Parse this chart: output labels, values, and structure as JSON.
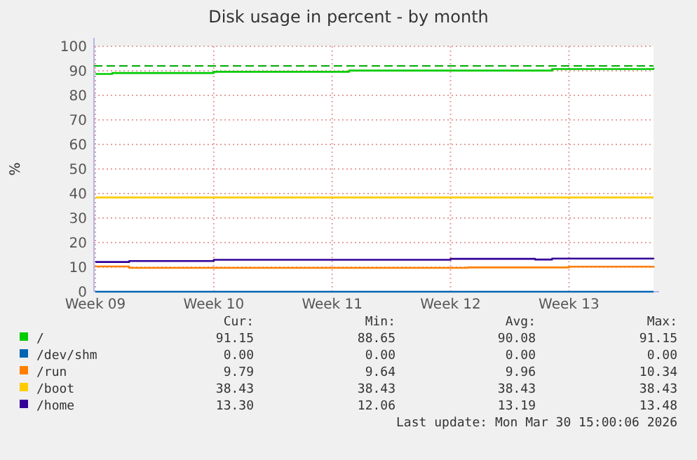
{
  "chart_data": {
    "type": "step",
    "title": "Disk usage in percent - by month",
    "ylabel": "%",
    "categories": [
      "Week 09",
      null,
      null,
      null,
      null,
      null,
      null,
      "Week 10",
      null,
      null,
      null,
      null,
      null,
      null,
      "Week 11",
      null,
      null,
      null,
      null,
      null,
      null,
      "Week 12",
      null,
      null,
      null,
      null,
      null,
      null,
      "Week 13",
      null,
      null,
      null,
      null,
      null
    ],
    "ylim": [
      0,
      100
    ],
    "yticks": [
      0,
      10,
      20,
      30,
      40,
      50,
      60,
      70,
      80,
      90,
      100
    ],
    "grid": true,
    "legend": "bottom",
    "line_style": "solid",
    "series": [
      {
        "name": "/",
        "color": "#00cc00",
        "values": [
          88.7,
          89.1,
          89.1,
          89.1,
          89.1,
          89.1,
          89.1,
          89.6,
          89.6,
          89.6,
          89.6,
          89.6,
          89.6,
          89.6,
          89.6,
          90.1,
          90.1,
          90.1,
          90.1,
          90.1,
          90.1,
          90.1,
          90.1,
          90.1,
          90.1,
          90.1,
          90.1,
          90.7,
          90.7,
          90.7,
          90.7,
          90.7,
          90.7,
          91.2
        ]
      },
      {
        "name": "/dev/shm",
        "color": "#0066b3",
        "values": [
          0,
          0,
          0,
          0,
          0,
          0,
          0,
          0,
          0,
          0,
          0,
          0,
          0,
          0,
          0,
          0,
          0,
          0,
          0,
          0,
          0,
          0,
          0,
          0,
          0,
          0,
          0,
          0,
          0,
          0,
          0,
          0,
          0,
          0
        ]
      },
      {
        "name": "/run",
        "color": "#ff8000",
        "values": [
          10.3,
          10.3,
          9.7,
          9.7,
          9.7,
          9.7,
          9.7,
          9.7,
          9.7,
          9.7,
          9.7,
          9.7,
          9.7,
          9.7,
          9.7,
          9.7,
          9.7,
          9.7,
          9.7,
          9.7,
          9.7,
          9.7,
          9.9,
          9.9,
          9.9,
          9.9,
          9.9,
          9.9,
          10.2,
          10.2,
          10.2,
          10.2,
          10.2,
          9.8
        ]
      },
      {
        "name": "/boot",
        "color": "#ffcc00",
        "values": [
          38.4,
          38.4,
          38.4,
          38.4,
          38.4,
          38.4,
          38.4,
          38.4,
          38.4,
          38.4,
          38.4,
          38.4,
          38.4,
          38.4,
          38.4,
          38.4,
          38.4,
          38.4,
          38.4,
          38.4,
          38.4,
          38.4,
          38.4,
          38.4,
          38.4,
          38.4,
          38.4,
          38.4,
          38.4,
          38.4,
          38.4,
          38.4,
          38.4,
          38.4
        ]
      },
      {
        "name": "/home",
        "color": "#330099",
        "values": [
          12.1,
          12.1,
          12.5,
          12.5,
          12.5,
          12.5,
          12.5,
          13.0,
          13.0,
          13.0,
          13.0,
          13.0,
          13.0,
          13.0,
          13.0,
          13.0,
          13.0,
          13.0,
          13.0,
          13.0,
          13.0,
          13.4,
          13.4,
          13.4,
          13.4,
          13.4,
          13.1,
          13.5,
          13.5,
          13.5,
          13.5,
          13.5,
          13.5,
          13.3
        ]
      }
    ],
    "ref_lines": [
      {
        "axis": "y",
        "value": 92,
        "color": "#00aa00",
        "line_style": "dashed"
      }
    ],
    "annotations": [
      "Cur:",
      "Min:",
      "Avg:",
      "Max:",
      "91.15",
      "88.65",
      "90.08",
      "91.15",
      "0.00",
      "0.00",
      "0.00",
      "0.00",
      "9.79",
      "9.64",
      "9.96",
      "10.34",
      "38.43",
      "38.43",
      "38.43",
      "38.43",
      "13.30",
      "12.06",
      "13.19",
      "13.48",
      "Last update: Mon Mar 30 15:00:06 2026"
    ]
  }
}
